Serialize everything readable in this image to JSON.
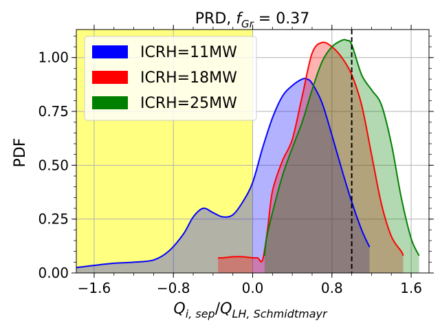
{
  "chart_data": {
    "type": "area",
    "title": "PRD, $f_{Gr} = 0.37$",
    "title_parts": {
      "main": "PRD, ",
      "symbol": "f",
      "subscript": "Gr",
      "rest": " = 0.37"
    },
    "xlabel": "$Q_{i,sep}/Q_{LH,Schmidtmayr}$",
    "xlabel_parts": {
      "q1": "Q",
      "sub1": "i, sep",
      "slash": "/",
      "q2": "Q",
      "sub2": "LH, Schmidtmayr"
    },
    "ylabel": "PDF",
    "xlim": [
      -1.78,
      1.78
    ],
    "ylim": [
      0.0,
      1.13
    ],
    "xticks": [
      -1.6,
      -0.8,
      0.0,
      0.8,
      1.6
    ],
    "xtick_labels": [
      "−1.6",
      "−0.8",
      "0.0",
      "0.8",
      "1.6"
    ],
    "yticks": [
      0.0,
      0.25,
      0.5,
      0.75,
      1.0
    ],
    "ytick_labels": [
      "0.00",
      "0.25",
      "0.50",
      "0.75",
      "1.00"
    ],
    "grid": true,
    "legend_position": "top-left",
    "shaded_region": {
      "x_from": -1.78,
      "x_to": 0.0,
      "color": "#ffff80"
    },
    "vline": {
      "x": 1.0,
      "style": "dashed",
      "color": "#000000"
    },
    "series": [
      {
        "name": "ICRH=11MW",
        "color": "#0000ff",
        "fill": "#0000ff",
        "fill_alpha": 0.3,
        "x": [
          -1.78,
          -1.6,
          -1.4,
          -1.2,
          -1.0,
          -0.85,
          -0.7,
          -0.6,
          -0.5,
          -0.4,
          -0.3,
          -0.2,
          -0.1,
          0.0,
          0.1,
          0.2,
          0.3,
          0.4,
          0.5,
          0.55,
          0.6,
          0.7,
          0.8,
          0.9,
          1.0,
          1.1,
          1.18
        ],
        "y": [
          0.025,
          0.035,
          0.045,
          0.05,
          0.06,
          0.1,
          0.18,
          0.26,
          0.3,
          0.28,
          0.26,
          0.27,
          0.33,
          0.42,
          0.58,
          0.72,
          0.82,
          0.87,
          0.9,
          0.9,
          0.88,
          0.79,
          0.64,
          0.48,
          0.33,
          0.2,
          0.12
        ]
      },
      {
        "name": "ICRH=18MW",
        "color": "#ff0000",
        "fill": "#ff0000",
        "fill_alpha": 0.3,
        "x": [
          -0.35,
          -0.3,
          -0.2,
          -0.1,
          0.0,
          0.05,
          0.1,
          0.15,
          0.2,
          0.3,
          0.4,
          0.5,
          0.6,
          0.7,
          0.8,
          0.9,
          1.0,
          1.1,
          1.2,
          1.3,
          1.4,
          1.5,
          1.52
        ],
        "y": [
          0.07,
          0.07,
          0.075,
          0.075,
          0.07,
          0.07,
          0.06,
          0.2,
          0.38,
          0.52,
          0.62,
          0.82,
          1.02,
          1.07,
          1.05,
          1.0,
          0.92,
          0.78,
          0.55,
          0.32,
          0.17,
          0.1,
          0.08
        ]
      },
      {
        "name": "ICRH=25MW",
        "color": "#008000",
        "fill": "#008000",
        "fill_alpha": 0.3,
        "x": [
          0.12,
          0.14,
          0.2,
          0.3,
          0.4,
          0.5,
          0.6,
          0.7,
          0.8,
          0.9,
          0.95,
          1.0,
          1.1,
          1.2,
          1.3,
          1.4,
          1.5,
          1.6,
          1.68
        ],
        "y": [
          0.08,
          0.16,
          0.28,
          0.45,
          0.58,
          0.7,
          0.85,
          0.98,
          1.05,
          1.08,
          1.08,
          1.06,
          0.92,
          0.85,
          0.78,
          0.6,
          0.35,
          0.16,
          0.08
        ]
      }
    ]
  }
}
